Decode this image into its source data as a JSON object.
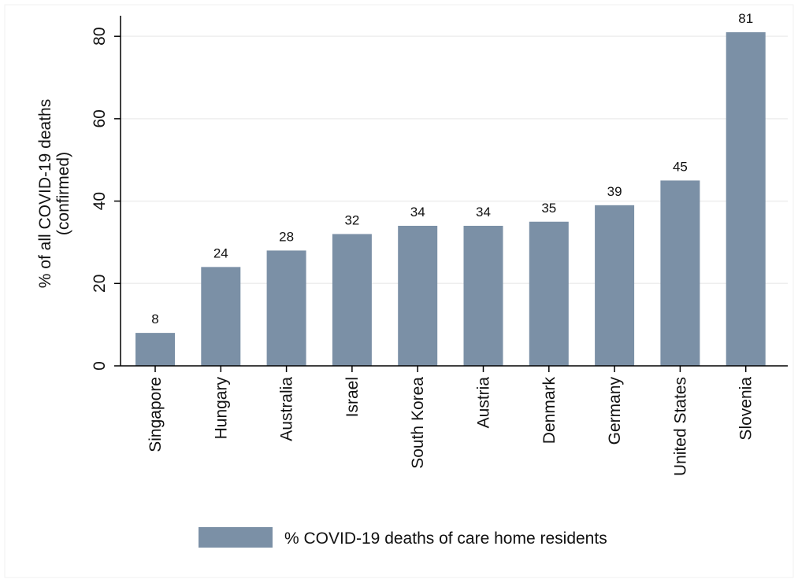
{
  "chart_data": {
    "type": "bar",
    "categories": [
      "Singapore",
      "Hungary",
      "Australia",
      "Israel",
      "South Korea",
      "Austria",
      "Denmark",
      "Germany",
      "United States",
      "Slovenia"
    ],
    "series": [
      {
        "name": "% COVID-19 deaths of care home residents",
        "values": [
          8,
          24,
          28,
          32,
          34,
          34,
          35,
          39,
          45,
          81
        ],
        "data_labels": [
          "8",
          "24",
          "28",
          "32",
          "34",
          "34",
          "35",
          "39",
          "45",
          "81"
        ],
        "color": "#7b90a6"
      }
    ],
    "ylabel_line1": "% of all COVID-19 deaths",
    "ylabel_line2": "(confirmed)",
    "xlabel": "",
    "ylim": [
      0,
      85
    ],
    "yticks": [
      0,
      20,
      40,
      60,
      80
    ],
    "ytick_labels": [
      "0",
      "20",
      "40",
      "60",
      "80"
    ],
    "grid": true,
    "legend_position": "bottom-center",
    "colors": {
      "bar": "#7b90a6",
      "grid": "#eeeeee",
      "axis": "#000000",
      "background": "#ffffff"
    }
  }
}
